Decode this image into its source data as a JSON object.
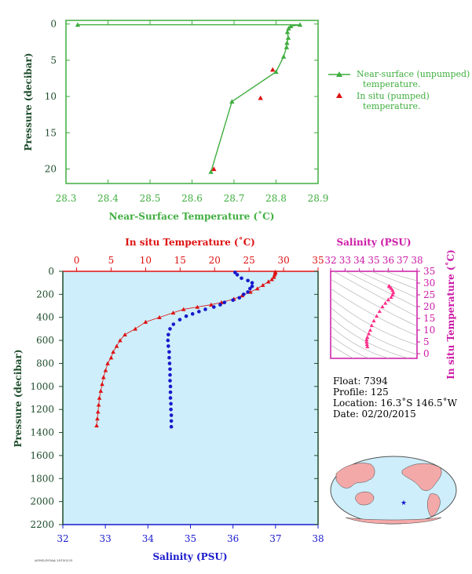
{
  "colors": {
    "green": "#3fae3f",
    "red": "#dd1111",
    "blue": "#1818cc",
    "magenta": "#cc1aa6",
    "pink": "#ff2f8a",
    "axis_dark": "#1e4d2b",
    "panel_bg": "#cdeefa"
  },
  "chart_data": [
    {
      "type": "line",
      "xlabel": "Near-Surface Temperature (˚C)",
      "ylabel": "Pressure (decibar)",
      "xlim": [
        28.3,
        28.9
      ],
      "ylim": [
        22,
        -0.5
      ],
      "xticks": [
        "28.3",
        "28.4",
        "28.5",
        "28.6",
        "28.7",
        "28.8",
        "28.9"
      ],
      "yticks": [
        "0",
        "5",
        "10",
        "15",
        "20"
      ],
      "legend_position": "right",
      "series": [
        {
          "name": "Near-surface (unpumped) temperature.",
          "marker": "triangle",
          "points": [
            [
              28.328,
              0.1
            ],
            [
              28.857,
              0.1
            ],
            [
              28.835,
              0.3
            ],
            [
              28.83,
              0.6
            ],
            [
              28.827,
              1.1
            ],
            [
              28.829,
              1.9
            ],
            [
              28.826,
              2.6
            ],
            [
              28.825,
              3.2
            ],
            [
              28.818,
              4.5
            ],
            [
              28.8,
              6.6
            ],
            [
              28.695,
              10.7
            ],
            [
              28.645,
              20.4
            ]
          ]
        },
        {
          "name": "In situ (pumped) temperature.",
          "marker": "triangle",
          "points": [
            [
              28.792,
              6.3
            ],
            [
              28.763,
              10.2
            ],
            [
              28.652,
              20.0
            ]
          ]
        }
      ]
    },
    {
      "type": "scatter",
      "ylabel": "Pressure (decibar)",
      "x_top_label": "In situ Temperature (˚C)",
      "x_bottom_label": "Salinity (PSU)",
      "ylim": [
        2200,
        0
      ],
      "temperature_xlim": [
        -2,
        35
      ],
      "salinity_xlim": [
        32,
        38
      ],
      "temperature_ticks": [
        "0",
        "5",
        "10",
        "15",
        "20",
        "25",
        "30",
        "35"
      ],
      "salinity_ticks": [
        "32",
        "33",
        "34",
        "35",
        "36",
        "37",
        "38"
      ],
      "pressure_ticks": [
        "0",
        "200",
        "400",
        "600",
        "800",
        "1000",
        "1200",
        "1400",
        "1600",
        "1800",
        "2000",
        "2200"
      ],
      "series": [
        {
          "name": "In situ Temperature",
          "marker": "triangle",
          "points": [
            [
              28.8,
              5
            ],
            [
              28.8,
              15
            ],
            [
              28.7,
              30
            ],
            [
              28.6,
              50
            ],
            [
              28.3,
              70
            ],
            [
              27.8,
              90
            ],
            [
              27.0,
              120
            ],
            [
              26.2,
              150
            ],
            [
              25.2,
              180
            ],
            [
              24.0,
              210
            ],
            [
              22.8,
              240
            ],
            [
              21.0,
              270
            ],
            [
              19.5,
              290
            ],
            [
              17.5,
              310
            ],
            [
              15.5,
              330
            ],
            [
              14.0,
              360
            ],
            [
              12.0,
              400
            ],
            [
              10.0,
              440
            ],
            [
              8.5,
              500
            ],
            [
              7.0,
              550
            ],
            [
              6.3,
              600
            ],
            [
              5.8,
              650
            ],
            [
              5.3,
              700
            ],
            [
              5.0,
              750
            ],
            [
              4.5,
              800
            ],
            [
              4.2,
              860
            ],
            [
              3.9,
              920
            ],
            [
              3.7,
              980
            ],
            [
              3.5,
              1040
            ],
            [
              3.3,
              1100
            ],
            [
              3.2,
              1160
            ],
            [
              3.1,
              1220
            ],
            [
              3.0,
              1280
            ],
            [
              2.9,
              1340
            ]
          ]
        },
        {
          "name": "Salinity",
          "marker": "circle",
          "points": [
            [
              36.05,
              10
            ],
            [
              36.1,
              30
            ],
            [
              36.2,
              60
            ],
            [
              36.35,
              80
            ],
            [
              36.45,
              100
            ],
            [
              36.45,
              130
            ],
            [
              36.4,
              150
            ],
            [
              36.35,
              180
            ],
            [
              36.25,
              200
            ],
            [
              36.15,
              230
            ],
            [
              36.0,
              250
            ],
            [
              35.8,
              270
            ],
            [
              35.7,
              290
            ],
            [
              35.55,
              310
            ],
            [
              35.35,
              330
            ],
            [
              35.2,
              350
            ],
            [
              35.05,
              370
            ],
            [
              34.9,
              390
            ],
            [
              34.75,
              420
            ],
            [
              34.6,
              460
            ],
            [
              34.52,
              500
            ],
            [
              34.48,
              550
            ],
            [
              34.47,
              600
            ],
            [
              34.48,
              650
            ],
            [
              34.5,
              700
            ],
            [
              34.5,
              750
            ],
            [
              34.51,
              800
            ],
            [
              34.52,
              850
            ],
            [
              34.52,
              900
            ],
            [
              34.52,
              950
            ],
            [
              34.53,
              1000
            ],
            [
              34.53,
              1050
            ],
            [
              34.53,
              1100
            ],
            [
              34.54,
              1150
            ],
            [
              34.54,
              1200
            ],
            [
              34.55,
              1250
            ],
            [
              34.55,
              1300
            ],
            [
              34.55,
              1350
            ]
          ]
        }
      ]
    },
    {
      "type": "scatter",
      "xlabel": "Salinity (PSU)",
      "ylabel": "In situ Temperature (˚C)",
      "xlim": [
        32,
        38
      ],
      "ylim": [
        -2,
        35
      ],
      "xticks": [
        "32",
        "33",
        "34",
        "35",
        "36",
        "37",
        "38"
      ],
      "yticks": [
        "0",
        "5",
        "10",
        "15",
        "20",
        "25",
        "30",
        "35"
      ],
      "series": [
        {
          "name": "T-S profile",
          "marker": "triangle",
          "points": [
            [
              36.05,
              28.8
            ],
            [
              36.1,
              28.5
            ],
            [
              36.2,
              27.8
            ],
            [
              36.3,
              27.0
            ],
            [
              36.35,
              26.0
            ],
            [
              36.3,
              25.0
            ],
            [
              36.2,
              24.0
            ],
            [
              36.0,
              23.0
            ],
            [
              35.8,
              21.5
            ],
            [
              35.6,
              20.0
            ],
            [
              35.4,
              18.0
            ],
            [
              35.2,
              16.0
            ],
            [
              35.0,
              14.0
            ],
            [
              34.85,
              12.0
            ],
            [
              34.75,
              10.0
            ],
            [
              34.65,
              8.5
            ],
            [
              34.55,
              7.0
            ],
            [
              34.5,
              6.0
            ],
            [
              34.5,
              5.0
            ],
            [
              34.52,
              4.0
            ],
            [
              34.55,
              3.0
            ]
          ]
        }
      ]
    }
  ],
  "info": {
    "float": "Float:  7394",
    "profile": "Profile:  125",
    "location": "Location:  16.3˚S  146.5˚W",
    "date": "Date:  02/20/2015"
  },
  "footer_text": "AOML/NOAA  20150225"
}
